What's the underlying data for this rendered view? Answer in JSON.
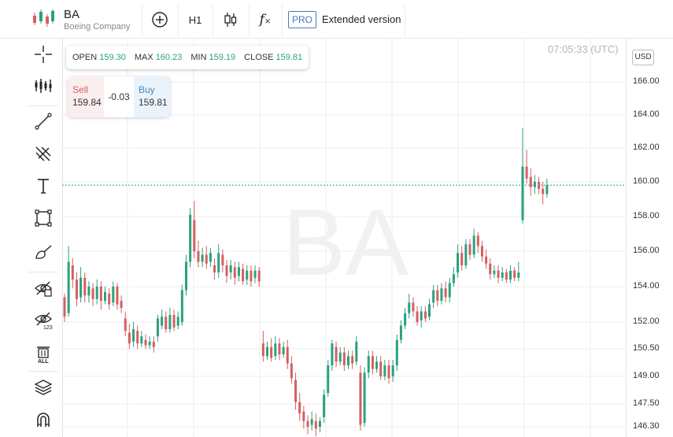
{
  "header": {
    "symbol": "BA",
    "company": "Boeing Company",
    "timeframe": "H1",
    "pro_badge": "PRO",
    "extended_label": "Extended version"
  },
  "toolbar_icons": [
    "add-indicator-icon",
    "candlestick-type-icon",
    "function-icon"
  ],
  "sidebar_icons": [
    "crosshair-icon",
    "indicators-icon",
    "trend-line-icon",
    "pitchfork-icon",
    "text-icon",
    "rectangle-icon",
    "brush-icon",
    "eye-hide-icon",
    "eye-123-icon",
    "delete-all-icon",
    "layers-icon",
    "magnet-icon"
  ],
  "timestamp": "07:05:33 (UTC)",
  "currency": "USD",
  "ohlc": {
    "open_label": "OPEN",
    "open": "159.30",
    "max_label": "MAX",
    "max": "160.23",
    "min_label": "MIN",
    "min": "159.19",
    "close_label": "CLOSE",
    "close": "159.81"
  },
  "trade": {
    "sell_label": "Sell",
    "sell": "159.84",
    "spread": "-0.03",
    "buy_label": "Buy",
    "buy": "159.81"
  },
  "colors": {
    "up": "#2aa181",
    "down": "#d75e5e",
    "accent": "#4a7ab8"
  },
  "chart_data": {
    "type": "candlestick",
    "watermark": "BA",
    "current_price": 159.81,
    "y_ticks": [
      166.0,
      164.0,
      162.0,
      160.0,
      158.0,
      156.0,
      154.0,
      152.0,
      150.5,
      149.0,
      147.5,
      146.3
    ],
    "y_tick_labels": [
      "166.00",
      "164.00",
      "162.00",
      "160.00",
      "158.00",
      "156.00",
      "154.00",
      "152.00",
      "150.50",
      "149.00",
      "147.50",
      "146.30"
    ],
    "candles": [
      [
        1,
        153.4,
        152.3,
        153.6,
        152.0
      ],
      [
        2,
        152.5,
        155.4,
        156.3,
        152.3
      ],
      [
        3,
        155.2,
        154.4,
        155.6,
        153.9
      ],
      [
        4,
        154.4,
        153.3,
        154.8,
        152.9
      ],
      [
        5,
        153.4,
        154.5,
        155.1,
        153.1
      ],
      [
        6,
        154.5,
        153.5,
        154.8,
        153.1
      ],
      [
        7,
        153.5,
        154.0,
        154.3,
        153.1
      ],
      [
        8,
        153.9,
        153.3,
        154.2,
        152.9
      ],
      [
        9,
        153.3,
        154.0,
        154.4,
        153.0
      ],
      [
        10,
        154.0,
        153.2,
        154.3,
        152.7
      ],
      [
        11,
        153.2,
        153.7,
        154.0,
        153.0
      ],
      [
        12,
        153.6,
        153.0,
        153.9,
        152.7
      ],
      [
        13,
        153.1,
        154.0,
        154.3,
        152.9
      ],
      [
        14,
        154.0,
        153.0,
        154.2,
        152.7
      ],
      [
        15,
        153.2,
        152.8,
        153.5,
        152.5
      ],
      [
        16,
        152.2,
        151.5,
        152.6,
        151.2
      ],
      [
        17,
        151.4,
        150.8,
        151.9,
        150.5
      ],
      [
        18,
        150.9,
        151.6,
        152.0,
        150.6
      ],
      [
        19,
        151.5,
        150.8,
        151.8,
        150.5
      ],
      [
        20,
        150.8,
        151.2,
        151.5,
        150.6
      ],
      [
        21,
        151.0,
        150.7,
        151.3,
        150.5
      ],
      [
        22,
        150.7,
        150.9,
        151.2,
        150.5
      ],
      [
        23,
        150.9,
        150.6,
        151.2,
        150.3
      ],
      [
        24,
        151.2,
        152.2,
        152.4,
        150.9
      ],
      [
        25,
        151.8,
        152.3,
        152.7,
        151.6
      ],
      [
        26,
        152.3,
        151.6,
        152.6,
        151.4
      ],
      [
        27,
        151.6,
        152.4,
        152.8,
        151.4
      ],
      [
        28,
        152.4,
        151.7,
        152.7,
        151.5
      ],
      [
        29,
        151.8,
        152.3,
        152.6,
        151.6
      ],
      [
        30,
        152.0,
        153.8,
        154.1,
        151.8
      ],
      [
        31,
        153.8,
        155.4,
        155.8,
        153.5
      ],
      [
        32,
        155.4,
        158.1,
        158.5,
        155.1
      ],
      [
        33,
        157.8,
        156.0,
        158.9,
        155.6
      ],
      [
        34,
        156.0,
        155.4,
        156.6,
        155.1
      ],
      [
        35,
        155.4,
        155.8,
        156.2,
        155.1
      ],
      [
        36,
        155.8,
        155.3,
        156.3,
        155.0
      ],
      [
        37,
        155.4,
        155.9,
        156.2,
        155.1
      ],
      [
        38,
        155.2,
        154.8,
        155.6,
        154.4
      ],
      [
        39,
        154.8,
        155.9,
        156.4,
        154.5
      ],
      [
        40,
        155.8,
        155.2,
        156.1,
        154.8
      ],
      [
        41,
        155.2,
        154.6,
        155.5,
        154.2
      ],
      [
        42,
        154.8,
        155.2,
        155.5,
        154.4
      ],
      [
        43,
        155.1,
        154.5,
        155.4,
        154.1
      ],
      [
        44,
        154.6,
        155.1,
        155.4,
        154.3
      ],
      [
        45,
        155.0,
        154.3,
        155.3,
        154.1
      ],
      [
        46,
        154.4,
        154.9,
        155.2,
        154.1
      ],
      [
        47,
        154.9,
        154.3,
        155.2,
        154.0
      ],
      [
        48,
        154.5,
        154.9,
        155.2,
        154.2
      ],
      [
        49,
        154.9,
        154.3,
        155.1,
        154.0
      ],
      [
        50,
        150.8,
        150.1,
        151.5,
        149.8
      ],
      [
        51,
        150.1,
        150.6,
        150.9,
        149.9
      ],
      [
        52,
        150.6,
        150.0,
        151.1,
        149.8
      ],
      [
        53,
        150.1,
        150.8,
        151.2,
        149.9
      ],
      [
        54,
        150.8,
        150.2,
        151.1,
        149.9
      ],
      [
        55,
        150.2,
        150.6,
        150.9,
        150.0
      ],
      [
        56,
        150.6,
        149.7,
        151.0,
        149.4
      ],
      [
        57,
        149.7,
        148.9,
        150.1,
        148.6
      ],
      [
        58,
        148.8,
        147.6,
        149.2,
        147.2
      ],
      [
        59,
        147.6,
        147.0,
        148.1,
        146.6
      ],
      [
        60,
        147.1,
        146.6,
        147.4,
        146.2
      ],
      [
        61,
        146.6,
        146.3,
        146.9,
        145.9
      ],
      [
        62,
        146.4,
        146.7,
        147.1,
        146.1
      ],
      [
        63,
        146.6,
        146.2,
        147.0,
        145.8
      ],
      [
        64,
        146.3,
        146.6,
        146.8,
        146.0
      ],
      [
        65,
        146.8,
        148.0,
        148.3,
        146.5
      ],
      [
        66,
        148.1,
        149.6,
        149.9,
        147.9
      ],
      [
        67,
        149.6,
        150.8,
        151.0,
        149.3
      ],
      [
        68,
        150.6,
        149.8,
        150.9,
        149.5
      ],
      [
        69,
        149.8,
        150.3,
        150.6,
        149.6
      ],
      [
        70,
        150.3,
        149.6,
        150.6,
        149.3
      ],
      [
        71,
        149.6,
        150.1,
        150.4,
        149.4
      ],
      [
        72,
        150.1,
        149.7,
        150.4,
        149.4
      ],
      [
        73,
        149.8,
        150.9,
        151.2,
        149.6
      ],
      [
        74,
        149.2,
        146.4,
        149.6,
        146.1
      ],
      [
        75,
        146.5,
        149.2,
        149.5,
        146.3
      ],
      [
        76,
        149.2,
        150.1,
        150.4,
        148.9
      ],
      [
        77,
        150.1,
        149.4,
        150.4,
        149.1
      ],
      [
        78,
        149.4,
        149.8,
        150.1,
        149.2
      ],
      [
        79,
        149.8,
        149.0,
        150.1,
        148.8
      ],
      [
        80,
        149.0,
        149.6,
        149.9,
        148.8
      ],
      [
        81,
        149.6,
        148.9,
        149.9,
        148.6
      ],
      [
        82,
        149.0,
        149.6,
        149.9,
        148.7
      ],
      [
        83,
        149.6,
        151.0,
        151.3,
        149.3
      ],
      [
        84,
        151.0,
        151.8,
        152.1,
        150.8
      ],
      [
        85,
        151.8,
        152.5,
        152.8,
        151.6
      ],
      [
        86,
        152.5,
        153.1,
        153.6,
        152.2
      ],
      [
        87,
        153.1,
        152.6,
        153.4,
        152.3
      ],
      [
        88,
        152.6,
        152.0,
        152.9,
        151.8
      ],
      [
        89,
        152.1,
        152.6,
        152.9,
        151.7
      ],
      [
        90,
        152.6,
        152.2,
        152.9,
        152.0
      ],
      [
        91,
        152.3,
        153.0,
        153.3,
        152.1
      ],
      [
        92,
        153.1,
        153.8,
        154.1,
        152.8
      ],
      [
        93,
        153.8,
        153.2,
        154.1,
        152.9
      ],
      [
        94,
        153.2,
        153.9,
        154.2,
        153.0
      ],
      [
        95,
        153.9,
        153.4,
        154.3,
        153.1
      ],
      [
        96,
        153.4,
        154.2,
        154.5,
        153.1
      ],
      [
        97,
        154.2,
        154.7,
        155.1,
        154.0
      ],
      [
        98,
        154.8,
        155.9,
        156.4,
        154.5
      ],
      [
        99,
        155.9,
        155.2,
        156.3,
        154.9
      ],
      [
        100,
        155.2,
        156.4,
        156.7,
        155.0
      ],
      [
        101,
        156.4,
        155.8,
        156.7,
        155.5
      ],
      [
        102,
        155.8,
        156.9,
        157.3,
        155.6
      ],
      [
        103,
        156.9,
        156.3,
        157.1,
        155.9
      ],
      [
        104,
        156.3,
        155.7,
        156.6,
        155.4
      ],
      [
        105,
        155.7,
        155.3,
        156.1,
        155.0
      ],
      [
        106,
        155.3,
        154.7,
        155.6,
        154.4
      ],
      [
        107,
        154.7,
        154.9,
        155.2,
        154.5
      ],
      [
        108,
        154.9,
        154.5,
        155.2,
        154.2
      ],
      [
        109,
        154.5,
        154.8,
        155.1,
        154.3
      ],
      [
        110,
        154.8,
        154.4,
        155.0,
        154.2
      ],
      [
        111,
        154.4,
        154.9,
        155.2,
        154.2
      ],
      [
        112,
        154.9,
        154.5,
        155.1,
        154.3
      ],
      [
        113,
        154.5,
        154.8,
        155.4,
        154.3
      ],
      [
        114,
        157.8,
        160.9,
        163.2,
        157.6
      ],
      [
        115,
        160.9,
        160.2,
        161.9,
        159.9
      ],
      [
        116,
        160.3,
        159.7,
        160.8,
        159.2
      ],
      [
        117,
        159.7,
        160.0,
        160.4,
        159.3
      ],
      [
        118,
        160.0,
        159.6,
        160.3,
        159.3
      ],
      [
        119,
        159.6,
        159.3,
        160.0,
        158.7
      ],
      [
        120,
        159.3,
        159.8,
        160.2,
        159.1
      ]
    ]
  }
}
